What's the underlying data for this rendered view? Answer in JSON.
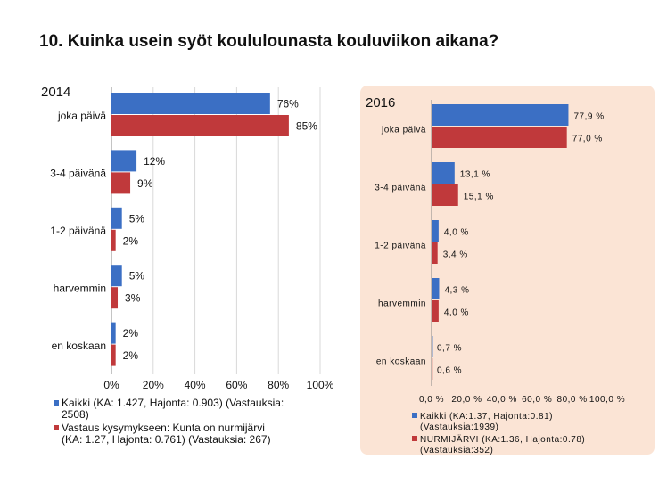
{
  "title": "10. Kuinka usein syöt koululounasta kouluviikon aikana?",
  "colors": {
    "series1": "#3b6fc4",
    "series2": "#c0393b",
    "panel_2016": "#fbe4d5"
  },
  "chart_data": [
    {
      "type": "bar",
      "orientation": "horizontal",
      "year_label": "2014",
      "categories": [
        "joka päivä",
        "3-4 päivänä",
        "1-2 päivänä",
        "harvemmin",
        "en koskaan"
      ],
      "series": [
        {
          "name": "Kaikki (KA: 1.427, Hajonta: 0.903) (Vastauksia: 2508)",
          "values": [
            76,
            12,
            5,
            5,
            2
          ],
          "labels": [
            "76%",
            "12%",
            "5%",
            "5%",
            "2%"
          ]
        },
        {
          "name": "Vastaus kysymykseen: Kunta on nurmijärvi (KA: 1.27, Hajonta: 0.761) (Vastauksia: 267)",
          "values": [
            85,
            9,
            2,
            3,
            2
          ],
          "labels": [
            "85%",
            "9%",
            "2%",
            "3%",
            "2%"
          ]
        }
      ],
      "xlim": [
        0,
        100
      ],
      "xticks": [
        "0%",
        "20%",
        "40%",
        "60%",
        "80%",
        "100%"
      ],
      "grid": true,
      "legend_position": "bottom",
      "legend_lines": [
        [
          "Kaikki (KA: 1.427, Hajonta: 0.903) (Vastauksia:",
          "2508)"
        ],
        [
          "Vastaus kysymykseen: Kunta on nurmijärvi",
          "(KA: 1.27, Hajonta: 0.761) (Vastauksia: 267)"
        ]
      ]
    },
    {
      "type": "bar",
      "orientation": "horizontal",
      "year_label": "2016",
      "categories": [
        "joka päivä",
        "3-4 päivänä",
        "1-2 päivänä",
        "harvemmin",
        "en koskaan"
      ],
      "series": [
        {
          "name": "Kaikki (KA:1.37, Hajonta:0.81) (Vastauksia:1939)",
          "values": [
            77.9,
            13.1,
            4.0,
            4.3,
            0.7
          ],
          "labels": [
            "77,9 %",
            "13,1 %",
            "4,0 %",
            "4,3 %",
            "0,7 %"
          ]
        },
        {
          "name": "NURMIJÄRVI (KA:1.36, Hajonta:0.78) (Vastauksia:352)",
          "values": [
            77.0,
            15.1,
            3.4,
            4.0,
            0.6
          ],
          "labels": [
            "77,0 %",
            "15,1 %",
            "3,4 %",
            "4,0 %",
            "0,6 %"
          ]
        }
      ],
      "xlim": [
        0,
        100
      ],
      "xticks": [
        "0,0 %",
        "20,0 %",
        "40,0 %",
        "60,0 %",
        "80,0 %",
        "100,0 %"
      ],
      "grid": false,
      "legend_position": "bottom",
      "legend_lines": [
        [
          "Kaikki (KA:1.37, Hajonta:0.81)",
          "(Vastauksia:1939)"
        ],
        [
          "NURMIJÄRVI (KA:1.36, Hajonta:0.78)",
          "(Vastauksia:352)"
        ]
      ]
    }
  ]
}
